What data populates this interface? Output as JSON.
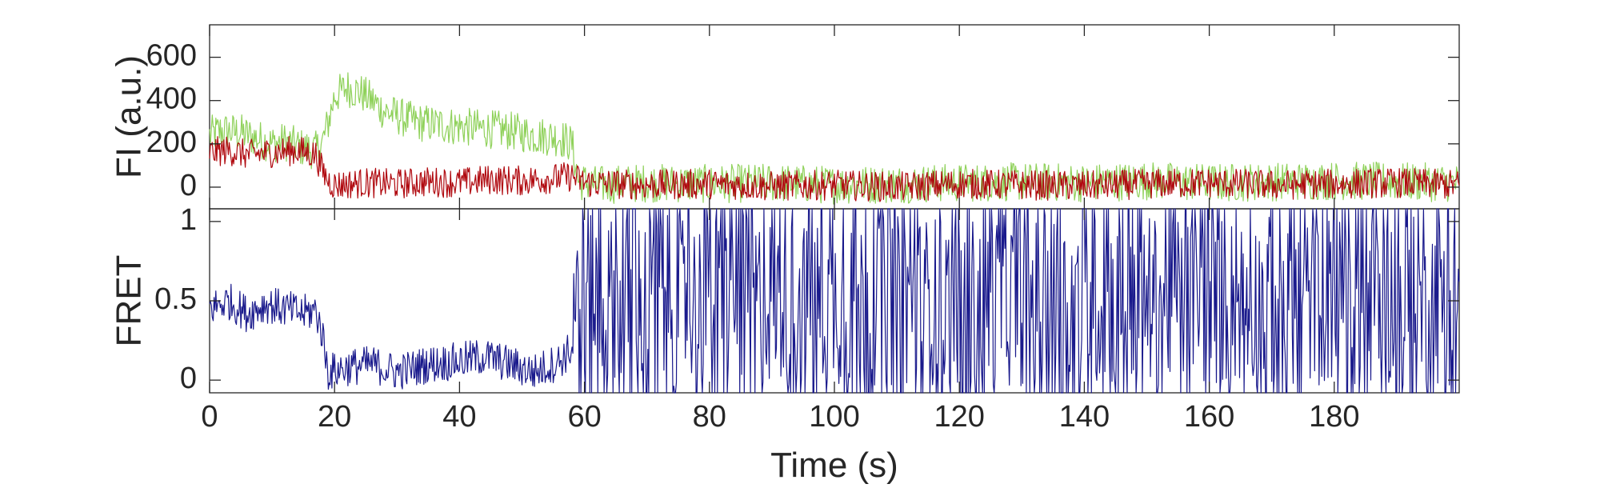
{
  "chart_data": [
    {
      "type": "line",
      "panel": "top",
      "ylabel": "FI (a.u.)",
      "xlabel": "",
      "xlim": [
        0,
        200
      ],
      "ylim": [
        -100,
        750
      ],
      "yticks": [
        0,
        200,
        400,
        600
      ],
      "ytick_labels": [
        "0",
        "200",
        "400",
        "600"
      ],
      "grid": false,
      "series": [
        {
          "color": "#8fd15a",
          "sampled_values": {
            "x": [
              0,
              2,
              5,
              8,
              10,
              12,
              15,
              17,
              18,
              19,
              20,
              22,
              24,
              26,
              28,
              30,
              33,
              36,
              40,
              44,
              48,
              52,
              56,
              58,
              59,
              62,
              70,
              80,
              90,
              100,
              110,
              120,
              130,
              140,
              150,
              160,
              170,
              180,
              190,
              200
            ],
            "y": [
              240,
              260,
              250,
              220,
              200,
              210,
              180,
              170,
              200,
              300,
              420,
              460,
              440,
              400,
              350,
              330,
              300,
              290,
              280,
              270,
              260,
              240,
              230,
              200,
              30,
              10,
              20,
              15,
              20,
              10,
              15,
              20,
              25,
              20,
              30,
              20,
              25,
              30,
              25,
              20
            ]
          },
          "noise_amplitude": 90
        },
        {
          "color": "#b0090f",
          "sampled_values": {
            "x": [
              0,
              3,
              6,
              10,
              14,
              17,
              18,
              19,
              20,
              25,
              30,
              35,
              40,
              45,
              50,
              55,
              58,
              60,
              70,
              80,
              90,
              100,
              110,
              120,
              130,
              140,
              150,
              160,
              170,
              180,
              190,
              200
            ],
            "y": [
              160,
              170,
              150,
              160,
              170,
              150,
              80,
              30,
              10,
              20,
              15,
              25,
              20,
              35,
              30,
              40,
              50,
              20,
              10,
              15,
              5,
              10,
              0,
              15,
              10,
              5,
              15,
              20,
              10,
              15,
              20,
              10
            ]
          },
          "noise_amplitude": 70
        }
      ]
    },
    {
      "type": "line",
      "panel": "bottom",
      "ylabel": "FRET",
      "xlabel": "Time (s)",
      "xlim": [
        0,
        200
      ],
      "ylim": [
        -0.08,
        1.08
      ],
      "yticks": [
        0,
        0.5,
        1
      ],
      "ytick_labels": [
        "0",
        "0.5",
        "1"
      ],
      "xticks": [
        0,
        20,
        40,
        60,
        80,
        100,
        120,
        140,
        160,
        180
      ],
      "xtick_labels": [
        "0",
        "20",
        "40",
        "60",
        "80",
        "100",
        "120",
        "140",
        "160",
        "180"
      ],
      "grid": false,
      "series": [
        {
          "color": "#1a1a8c",
          "sampled_values": {
            "x": [
              0,
              3,
              6,
              9,
              12,
              15,
              17,
              18,
              19,
              22,
              26,
              30,
              35,
              40,
              44,
              48,
              52,
              56,
              58
            ],
            "y": [
              0.45,
              0.5,
              0.42,
              0.48,
              0.45,
              0.42,
              0.44,
              0.3,
              0.05,
              0.08,
              0.1,
              0.05,
              0.1,
              0.12,
              0.15,
              0.1,
              0.05,
              0.12,
              0.2
            ]
          },
          "after_58s": "rapid fluctuation spanning full 0 to 1 range",
          "noise_amplitude": 0.12
        }
      ]
    }
  ]
}
